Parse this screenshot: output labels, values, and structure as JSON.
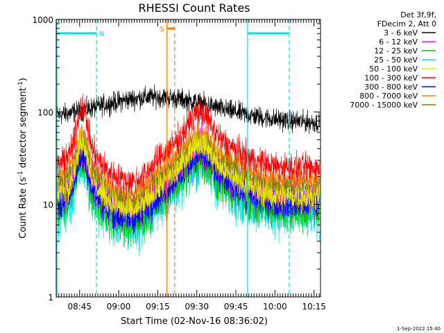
{
  "chart_data": {
    "type": "line",
    "title": "RHESSI Count Rates",
    "xlabel": "Start Time (02-Nov-16 08:36:02)",
    "ylabel_parts": [
      "Count Rate (s",
      "-1",
      " detector segment",
      "-1",
      ")"
    ],
    "yscale": "log",
    "ylim": [
      1,
      1000
    ],
    "xlim_minutes_after_0836": [
      0,
      101.5
    ],
    "yticks": [
      {
        "label": "1",
        "value": 1
      },
      {
        "label": "10",
        "value": 10
      },
      {
        "label": "100",
        "value": 100
      },
      {
        "label": "1000",
        "value": 1000
      }
    ],
    "xticks": [
      {
        "label": "08:45",
        "minutes": 9
      },
      {
        "label": "09:00",
        "minutes": 24
      },
      {
        "label": "09:15",
        "minutes": 39
      },
      {
        "label": "09:30",
        "minutes": 54
      },
      {
        "label": "09:45",
        "minutes": 69
      },
      {
        "label": "10:00",
        "minutes": 84
      },
      {
        "label": "10:15",
        "minutes": 99
      }
    ],
    "legend_header": [
      "Det 3f,9f,",
      "FDecim 2, Att 0"
    ],
    "series": [
      {
        "name": "3 - 6 keV",
        "color": "#000000",
        "base": 85,
        "flare1": 0.15,
        "flare2": 0.2,
        "noise": 0.22,
        "values": [
          85,
          95,
          110,
          120,
          125,
          140,
          130,
          115,
          100,
          80
        ]
      },
      {
        "name": "6 - 12 keV",
        "color": "#ff00ff",
        "base": 12,
        "flare1": 1.0,
        "flare2": 1.05,
        "noise": 0.45,
        "values": [
          12,
          25,
          7,
          12,
          22,
          14,
          13
        ]
      },
      {
        "name": "12 - 25 keV",
        "color": "#00cc00",
        "base": 9,
        "flare1": 1.2,
        "flare2": 1.1,
        "noise": 0.5,
        "values": [
          9,
          25,
          6,
          10,
          24,
          10,
          9
        ]
      },
      {
        "name": "25 - 50 keV",
        "color": "#00e0e0",
        "base": 8,
        "flare1": 1.5,
        "flare2": 1.2,
        "noise": 0.55,
        "values": [
          8,
          40,
          5,
          8,
          25,
          8,
          7
        ]
      },
      {
        "name": "50 - 100 keV",
        "color": "#e8e800",
        "base": 12,
        "flare1": 1.6,
        "flare2": 1.55,
        "noise": 0.3,
        "values": [
          12,
          80,
          15,
          25,
          50,
          16,
          14
        ]
      },
      {
        "name": "100 - 300 keV",
        "color": "#ff0000",
        "base": 25,
        "flare1": 1.9,
        "flare2": 1.6,
        "noise": 0.3,
        "values": [
          25,
          130,
          18,
          30,
          70,
          22,
          20
        ]
      },
      {
        "name": "300 - 800 keV",
        "color": "#0000ff",
        "base": 10,
        "flare1": 1.1,
        "flare2": 1.1,
        "noise": 0.35,
        "values": [
          10,
          25,
          9,
          14,
          26,
          12,
          11
        ]
      },
      {
        "name": "800 - 7000 keV",
        "color": "#ff8000",
        "base": 18,
        "flare1": 1.05,
        "flare2": 1.0,
        "noise": 0.25,
        "values": [
          18,
          32,
          14,
          20,
          32,
          20,
          18
        ]
      },
      {
        "name": "7000 - 15000 keV",
        "color": "#808000",
        "base": 15,
        "flare1": 1.0,
        "flare2": 1.0,
        "noise": 0.25,
        "values": [
          15,
          30,
          13,
          18,
          28,
          17,
          15
        ]
      }
    ],
    "cyan_solid_lines_minutes": [
      0,
      73.5
    ],
    "cyan_dashed_lines_minutes": [
      15.5,
      89.5
    ],
    "cyan_bars_minutes": [
      [
        0,
        15.5
      ],
      [
        73.5,
        89.5
      ]
    ],
    "cyan_bar_label": "N",
    "saa_label": "S",
    "orange_solid_lines_minutes": [
      42.5
    ],
    "orange_dashed_lines_minutes": [
      45.5
    ],
    "orange_bar_minutes": [
      42.5,
      45.5
    ]
  },
  "footer_date": "1-Sep-2022 15:40"
}
